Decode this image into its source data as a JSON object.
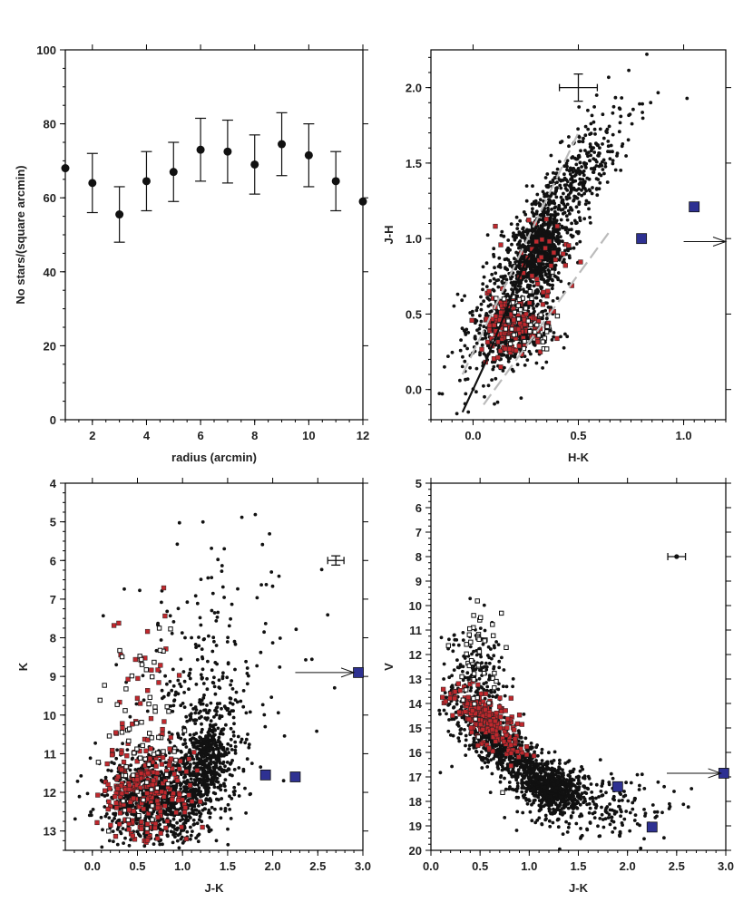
{
  "colors": {
    "black": "#111111",
    "red": "#c0282d",
    "blue": "#2e3192",
    "grey": "#bbbbbb"
  },
  "chart_data": [
    {
      "id": "density",
      "type": "scatter",
      "title": "",
      "xlabel": "radius (arcmin)",
      "ylabel": "No stars/(square arcmin)",
      "xlim": [
        1,
        12
      ],
      "ylim": [
        0,
        100
      ],
      "xticks": [
        "2",
        "4",
        "6",
        "8",
        "10",
        "12"
      ],
      "yticks": [
        "0",
        "20",
        "40",
        "60",
        "80",
        "100"
      ],
      "series": [
        {
          "name": "density",
          "x": [
            1,
            2,
            3,
            4,
            5,
            6,
            7,
            8,
            9,
            10,
            11,
            12
          ],
          "y": [
            68,
            64,
            55.5,
            64.5,
            67,
            73,
            72.5,
            69,
            74.5,
            71.5,
            64.5,
            59
          ],
          "err": [
            null,
            8,
            7.5,
            8,
            8,
            8.5,
            8.5,
            8,
            8.5,
            8.5,
            8,
            null
          ]
        }
      ]
    },
    {
      "id": "cc",
      "type": "scatter",
      "xlabel": "H-K",
      "ylabel": "J-H",
      "xlim": [
        -0.2,
        1.2
      ],
      "ylim": [
        -0.2,
        2.25
      ],
      "xticks": [
        "0.0",
        "0.5",
        "1.0"
      ],
      "yticks": [
        "0.0",
        "0.5",
        "1.0",
        "1.5",
        "2.0"
      ],
      "errorbar": {
        "x": 0.5,
        "y": 2.0,
        "dx": 0.09,
        "dy": 0.09
      },
      "lines": [
        {
          "name": "reddening-upper",
          "x": [
            -0.05,
            0.5
          ],
          "y": [
            0.1,
            1.7
          ]
        },
        {
          "name": "reddening-lower",
          "x": [
            0.05,
            0.65
          ],
          "y": [
            -0.1,
            1.05
          ]
        }
      ],
      "sequence": {
        "x": [
          -0.05,
          0.0,
          0.05,
          0.1,
          0.15,
          0.2,
          0.25,
          0.3
        ],
        "y": [
          -0.15,
          0.0,
          0.15,
          0.32,
          0.5,
          0.68,
          0.85,
          0.95
        ]
      },
      "blue_points": [
        [
          0.8,
          1.0
        ],
        [
          1.05,
          1.21
        ]
      ],
      "arrow": {
        "x0": 1.0,
        "y0": 0.98,
        "x1": 1.2,
        "y1": 0.98
      },
      "clusters": [
        {
          "cx": 0.32,
          "cy": 0.9,
          "sx": 0.05,
          "sy": 0.1,
          "n": 420,
          "color": "black"
        },
        {
          "cx": 0.32,
          "cy": 0.95,
          "sx": 0.16,
          "sy": 0.4,
          "n": 850,
          "color": "black",
          "corr": 2.2
        },
        {
          "cx": 0.18,
          "cy": 0.4,
          "sx": 0.09,
          "sy": 0.12,
          "n": 380,
          "color": "black"
        },
        {
          "cx": 0.45,
          "cy": 1.35,
          "sx": 0.2,
          "sy": 0.25,
          "n": 160,
          "color": "black",
          "corr": 1.5
        },
        {
          "cx": 0.18,
          "cy": 0.42,
          "sx": 0.08,
          "sy": 0.1,
          "n": 140,
          "color": "red"
        },
        {
          "cx": 0.3,
          "cy": 0.85,
          "sx": 0.08,
          "sy": 0.15,
          "n": 40,
          "color": "red"
        },
        {
          "cx": 0.25,
          "cy": 0.45,
          "sx": 0.08,
          "sy": 0.12,
          "n": 45,
          "color": "open"
        }
      ]
    },
    {
      "id": "cmd-k",
      "type": "scatter",
      "xlabel": "J-K",
      "ylabel": "K",
      "xlim": [
        -0.3,
        3.0
      ],
      "ylim": [
        13.5,
        4
      ],
      "xticks": [
        "0.0",
        "0.5",
        "1.0",
        "1.5",
        "2.0",
        "2.5",
        "3.0"
      ],
      "yticks": [
        "4",
        "5",
        "6",
        "7",
        "8",
        "9",
        "10",
        "11",
        "12",
        "13"
      ],
      "errorbar": {
        "x": 2.7,
        "y": 6.0,
        "dx": 0.09,
        "dy": 0.12
      },
      "blue_points": [
        [
          1.92,
          11.55
        ],
        [
          2.25,
          11.6
        ],
        [
          2.95,
          8.9
        ]
      ],
      "arrow": {
        "x0": 2.25,
        "y0": 8.9,
        "x1": 2.9,
        "y1": 8.9
      },
      "clusters": [
        {
          "cx": 1.25,
          "cy": 11.2,
          "sx": 0.12,
          "sy": 0.5,
          "n": 380,
          "color": "black"
        },
        {
          "cx": 0.75,
          "cy": 12.2,
          "sx": 0.32,
          "sy": 0.55,
          "n": 900,
          "color": "black"
        },
        {
          "cx": 1.25,
          "cy": 10.0,
          "sx": 0.25,
          "sy": 1.1,
          "n": 220,
          "color": "black"
        },
        {
          "cx": 1.4,
          "cy": 8.5,
          "sx": 0.5,
          "sy": 1.6,
          "n": 140,
          "color": "black"
        },
        {
          "cx": 0.6,
          "cy": 12.0,
          "sx": 0.25,
          "sy": 0.65,
          "n": 230,
          "color": "red"
        },
        {
          "cx": 0.55,
          "cy": 9.0,
          "sx": 0.2,
          "sy": 1.2,
          "n": 30,
          "color": "red"
        },
        {
          "cx": 0.55,
          "cy": 10.8,
          "sx": 0.2,
          "sy": 1.4,
          "n": 70,
          "color": "open"
        }
      ]
    },
    {
      "id": "cmd-v",
      "type": "scatter",
      "xlabel": "J-K",
      "ylabel": "V",
      "xlim": [
        0.0,
        3.0
      ],
      "ylim": [
        20,
        5
      ],
      "xticks": [
        "0.0",
        "0.5",
        "1.0",
        "1.5",
        "2.0",
        "2.5",
        "3.0"
      ],
      "yticks": [
        "5",
        "6",
        "7",
        "8",
        "9",
        "10",
        "11",
        "12",
        "13",
        "14",
        "15",
        "16",
        "17",
        "18",
        "19",
        "20"
      ],
      "errorbar": {
        "x": 2.5,
        "y": 8.0,
        "dx": 0.09,
        "dy": 0.12
      },
      "blue_points": [
        [
          1.9,
          17.4
        ],
        [
          2.25,
          19.05
        ],
        [
          2.98,
          16.85
        ]
      ],
      "arrow": {
        "x0": 2.4,
        "y0": 16.85,
        "x1": 2.95,
        "y1": 16.85
      },
      "clusters": [
        {
          "cx": 1.25,
          "cy": 17.5,
          "sx": 0.15,
          "sy": 0.45,
          "n": 500,
          "color": "black"
        },
        {
          "cx": 0.85,
          "cy": 16.2,
          "sx": 0.3,
          "sy": 1.1,
          "n": 750,
          "color": "black",
          "corr": 2.8
        },
        {
          "cx": 1.7,
          "cy": 18.3,
          "sx": 0.35,
          "sy": 0.7,
          "n": 200,
          "color": "black"
        },
        {
          "cx": 0.45,
          "cy": 13.0,
          "sx": 0.15,
          "sy": 1.2,
          "n": 220,
          "color": "black"
        },
        {
          "cx": 0.55,
          "cy": 14.6,
          "sx": 0.18,
          "sy": 1.0,
          "n": 220,
          "color": "red",
          "corr": 2.2
        },
        {
          "cx": 0.5,
          "cy": 12.5,
          "sx": 0.12,
          "sy": 1.2,
          "n": 45,
          "color": "open"
        }
      ]
    }
  ]
}
